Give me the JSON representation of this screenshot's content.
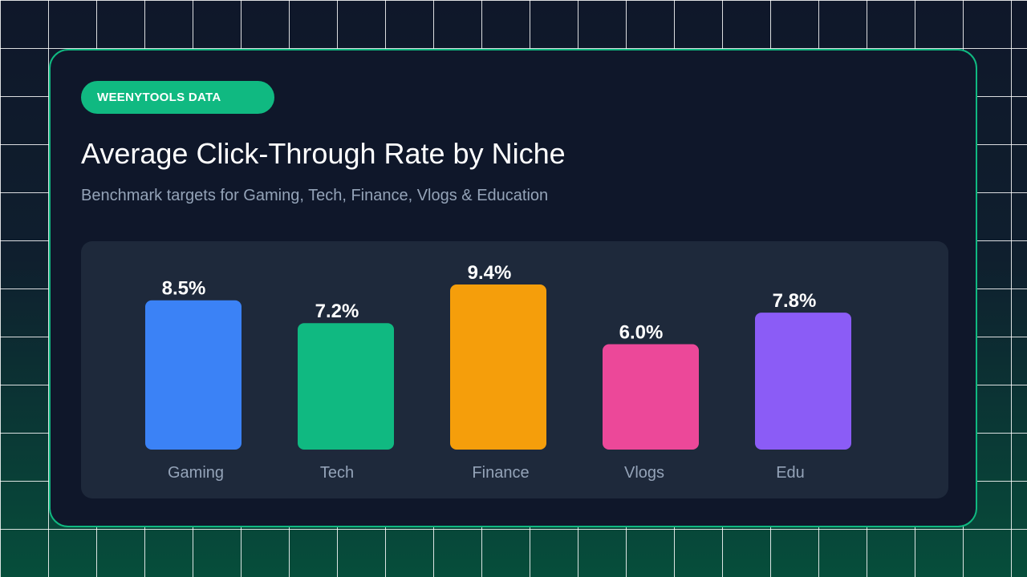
{
  "badge": {
    "label": "WEENYTOOLS DATA",
    "color": "#10b981"
  },
  "chart_data": {
    "type": "bar",
    "title": "Average Click-Through Rate by Niche",
    "subtitle": "Benchmark targets for Gaming, Tech, Finance, Vlogs & Education",
    "categories": [
      "Gaming",
      "Tech",
      "Finance",
      "Vlogs",
      "Edu"
    ],
    "values": [
      8.5,
      7.2,
      9.4,
      6.0,
      7.8
    ],
    "value_labels": [
      "8.5%",
      "7.2%",
      "9.4%",
      "6.0%",
      "7.8%"
    ],
    "colors": [
      "#3b82f6",
      "#10b981",
      "#f59e0b",
      "#ec4899",
      "#8b5cf6"
    ],
    "xlabel": "",
    "ylabel": "",
    "ylim": [
      0,
      9.4
    ],
    "grid": false,
    "legend": "none"
  }
}
